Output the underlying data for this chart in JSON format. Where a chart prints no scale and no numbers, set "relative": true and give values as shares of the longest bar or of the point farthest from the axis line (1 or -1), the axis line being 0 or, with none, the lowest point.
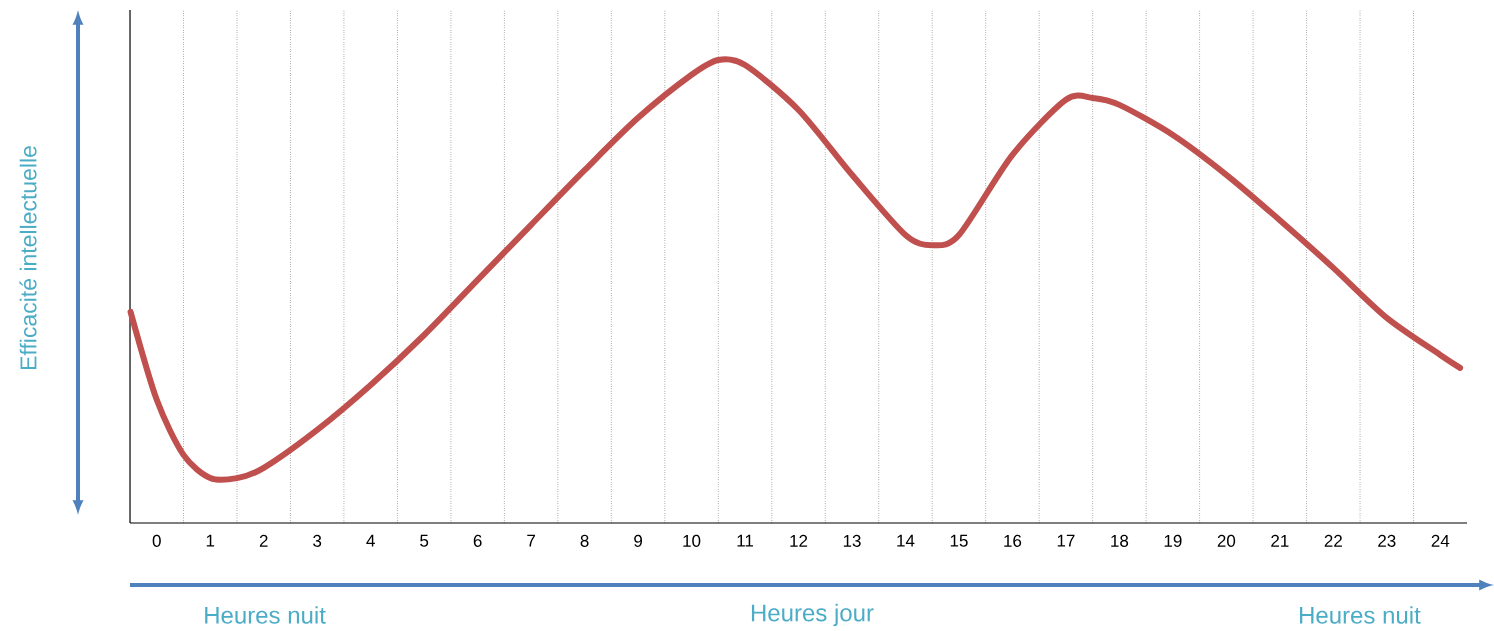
{
  "chart_data": {
    "type": "line",
    "relative": true,
    "ylabel": "Efficacité intellectuelle",
    "xlim": [
      -0.5,
      24.5
    ],
    "xticks": [
      0,
      1,
      2,
      3,
      4,
      5,
      6,
      7,
      8,
      9,
      10,
      11,
      12,
      13,
      14,
      15,
      16,
      17,
      18,
      19,
      20,
      21,
      22,
      23,
      24
    ],
    "grid": "x",
    "marker": "none",
    "line_style": "solid",
    "series": [
      {
        "color": "#c0504d",
        "x": [
          -0.49,
          0,
          0.5,
          1,
          1.5,
          2,
          3,
          4,
          5,
          6,
          7,
          8,
          9,
          10,
          10.5,
          11,
          12,
          13,
          14,
          14.5,
          15,
          16,
          17,
          17.5,
          18,
          19,
          20,
          21,
          22,
          23,
          24,
          24.37
        ],
        "values": [
          0.456,
          0.266,
          0.147,
          0.097,
          0.097,
          0.119,
          0.201,
          0.298,
          0.406,
          0.525,
          0.644,
          0.762,
          0.875,
          0.968,
          1,
          0.989,
          0.892,
          0.752,
          0.622,
          0.6,
          0.622,
          0.795,
          0.914,
          0.918,
          0.903,
          0.838,
          0.752,
          0.654,
          0.551,
          0.443,
          0.363,
          0.335
        ]
      }
    ],
    "annotations": [
      "Heures nuit",
      "Heures jour",
      "Heures nuit"
    ]
  }
}
